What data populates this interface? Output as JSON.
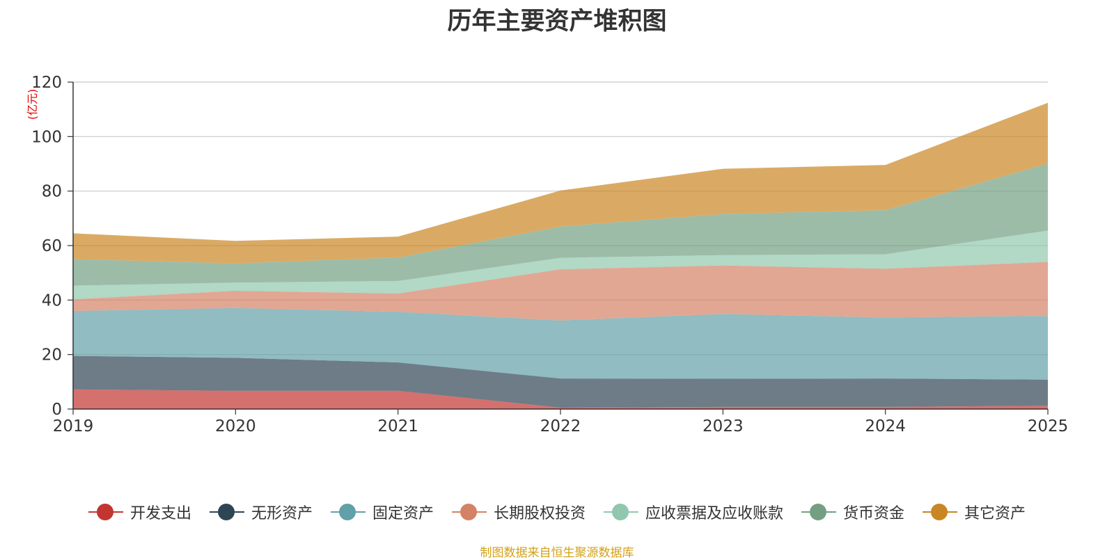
{
  "chart_data": {
    "type": "area",
    "stacked": true,
    "title": "历年主要资产堆积图",
    "unit_label": "(亿元)",
    "x": [
      "2019",
      "2020",
      "2021",
      "2022",
      "2023",
      "2024",
      "2025"
    ],
    "ylim": [
      0,
      120
    ],
    "yticks": [
      0,
      20,
      40,
      60,
      80,
      100,
      120
    ],
    "grid": true,
    "legend_position": "bottom",
    "series": [
      {
        "name": "开发支出",
        "color": "#c23531",
        "values": [
          7.2,
          6.7,
          6.7,
          0.5,
          0.8,
          0.8,
          1.2
        ]
      },
      {
        "name": "无形资产",
        "color": "#2f4554",
        "values": [
          12.3,
          12.1,
          10.4,
          10.7,
          10.3,
          10.4,
          9.6
        ]
      },
      {
        "name": "固定资产",
        "color": "#61a0a8",
        "values": [
          16.5,
          18.3,
          18.6,
          21.3,
          23.8,
          22.4,
          23.4
        ]
      },
      {
        "name": "长期股权投资",
        "color": "#d48265",
        "values": [
          4.3,
          6.3,
          6.7,
          18.8,
          17.8,
          17.9,
          19.8
        ]
      },
      {
        "name": "应收票据及应收账款",
        "color": "#91c7ae",
        "values": [
          5.0,
          3.0,
          4.6,
          4.2,
          3.8,
          5.3,
          11.5
        ]
      },
      {
        "name": "货币资金",
        "color": "#749f83",
        "values": [
          9.7,
          7.1,
          8.6,
          11.5,
          15.1,
          16.2,
          24.6
        ]
      },
      {
        "name": "其它资产",
        "color": "#ca8622",
        "values": [
          9.5,
          8.2,
          7.7,
          13.2,
          16.6,
          16.6,
          22.3
        ]
      }
    ]
  },
  "footer": {
    "source": "制图数据来自恒生聚源数据库"
  }
}
